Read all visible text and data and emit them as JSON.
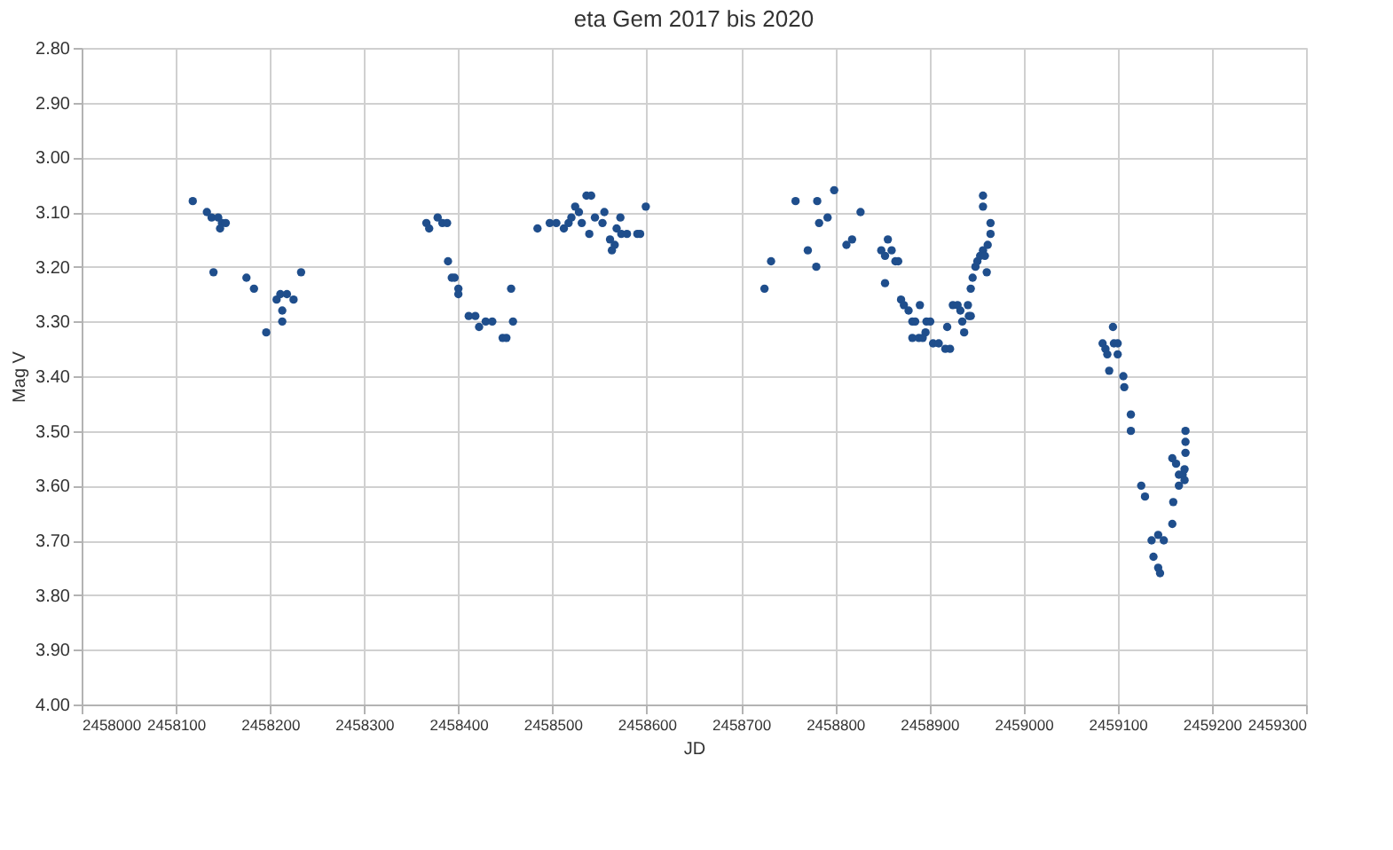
{
  "chart_data": {
    "type": "scatter",
    "title": "eta Gem 2017 bis 2020",
    "xlabel": "JD",
    "ylabel": "Mag V",
    "xlim": [
      2458000,
      2459300
    ],
    "xticks": [
      2458000,
      2458100,
      2458200,
      2458300,
      2458400,
      2458500,
      2458600,
      2458700,
      2458800,
      2458900,
      2459000,
      2459100,
      2459200,
      2459300
    ],
    "ylim": [
      4.0,
      2.8
    ],
    "yticks": [
      {
        "value": 2.8,
        "label": "2.80"
      },
      {
        "value": 2.9,
        "label": "2.90"
      },
      {
        "value": 3.0,
        "label": "3.00"
      },
      {
        "value": 3.1,
        "label": "3.10"
      },
      {
        "value": 3.2,
        "label": "3.20"
      },
      {
        "value": 3.3,
        "label": "3.30"
      },
      {
        "value": 3.4,
        "label": "3.40"
      },
      {
        "value": 3.5,
        "label": "3.50"
      },
      {
        "value": 3.6,
        "label": "3.60"
      },
      {
        "value": 3.7,
        "label": "3.70"
      },
      {
        "value": 3.8,
        "label": "3.80"
      },
      {
        "value": 3.9,
        "label": "3.90"
      },
      {
        "value": 4.0,
        "label": "4.00"
      }
    ],
    "grid": true,
    "marker": "circle",
    "series": [
      {
        "color": "#1f4e8c",
        "x": [
          2458118,
          2458133,
          2458138,
          2458145,
          2458149,
          2458153,
          2458147,
          2458140,
          2458175,
          2458183,
          2458196,
          2458207,
          2458211,
          2458213,
          2458213,
          2458218,
          2458225,
          2458233,
          2458366,
          2458369,
          2458378,
          2458383,
          2458388,
          2458389,
          2458393,
          2458396,
          2458400,
          2458400,
          2458411,
          2458418,
          2458422,
          2458429,
          2458436,
          2458447,
          2458451,
          2458456,
          2458458,
          2458484,
          2458497,
          2458504,
          2458512,
          2458517,
          2458520,
          2458524,
          2458528,
          2458531,
          2458536,
          2458541,
          2458539,
          2458545,
          2458553,
          2458555,
          2458561,
          2458563,
          2458566,
          2458568,
          2458572,
          2458573,
          2458579,
          2458590,
          2458593,
          2458599,
          2458725,
          2458732,
          2458758,
          2458771,
          2458780,
          2458781,
          2458783,
          2458792,
          2458799,
          2458812,
          2458818,
          2458827,
          2458849,
          2458853,
          2458856,
          2458860,
          2458864,
          2458867,
          2458853,
          2458870,
          2458873,
          2458878,
          2458882,
          2458885,
          2458882,
          2458889,
          2458896,
          2458904,
          2458890,
          2458897,
          2458901,
          2458893,
          2458910,
          2458917,
          2458922,
          2458919,
          2458925,
          2458930,
          2458933,
          2458935,
          2458937,
          2458941,
          2458942,
          2458944,
          2458944,
          2458946,
          2458949,
          2458951,
          2458954,
          2458957,
          2458959,
          2458961,
          2458962,
          2458965,
          2458965,
          2458957,
          2458957,
          2459084,
          2459087,
          2459089,
          2459091,
          2459095,
          2459096,
          2459100,
          2459100,
          2459106,
          2459107,
          2459114,
          2459114,
          2459125,
          2459129,
          2459136,
          2459143,
          2459149,
          2459138,
          2459143,
          2459145,
          2459158,
          2459159,
          2459158,
          2459162,
          2459165,
          2459165,
          2459169,
          2459171,
          2459172,
          2459172,
          2459172,
          2459171
        ],
        "values": [
          3.08,
          3.1,
          3.11,
          3.11,
          3.12,
          3.12,
          3.13,
          3.21,
          3.22,
          3.24,
          3.32,
          3.26,
          3.25,
          3.28,
          3.3,
          3.25,
          3.26,
          3.21,
          3.12,
          3.13,
          3.11,
          3.12,
          3.12,
          3.19,
          3.22,
          3.22,
          3.24,
          3.25,
          3.29,
          3.29,
          3.31,
          3.3,
          3.3,
          3.33,
          3.33,
          3.24,
          3.3,
          3.13,
          3.12,
          3.12,
          3.13,
          3.12,
          3.11,
          3.09,
          3.1,
          3.12,
          3.07,
          3.07,
          3.14,
          3.11,
          3.12,
          3.1,
          3.15,
          3.17,
          3.16,
          3.13,
          3.11,
          3.14,
          3.14,
          3.14,
          3.14,
          3.09,
          3.24,
          3.19,
          3.08,
          3.17,
          3.2,
          3.08,
          3.12,
          3.11,
          3.06,
          3.16,
          3.15,
          3.1,
          3.17,
          3.18,
          3.15,
          3.17,
          3.19,
          3.19,
          3.23,
          3.26,
          3.27,
          3.28,
          3.3,
          3.3,
          3.33,
          3.33,
          3.32,
          3.34,
          3.27,
          3.3,
          3.3,
          3.33,
          3.34,
          3.35,
          3.35,
          3.31,
          3.27,
          3.27,
          3.28,
          3.3,
          3.32,
          3.27,
          3.29,
          3.29,
          3.24,
          3.22,
          3.2,
          3.19,
          3.18,
          3.17,
          3.18,
          3.21,
          3.16,
          3.14,
          3.12,
          3.07,
          3.09,
          3.34,
          3.35,
          3.36,
          3.39,
          3.31,
          3.34,
          3.34,
          3.36,
          3.4,
          3.42,
          3.47,
          3.5,
          3.6,
          3.62,
          3.7,
          3.69,
          3.7,
          3.73,
          3.75,
          3.76,
          3.67,
          3.63,
          3.55,
          3.56,
          3.58,
          3.6,
          3.58,
          3.57,
          3.54,
          3.52,
          3.5,
          3.59
        ]
      }
    ]
  }
}
